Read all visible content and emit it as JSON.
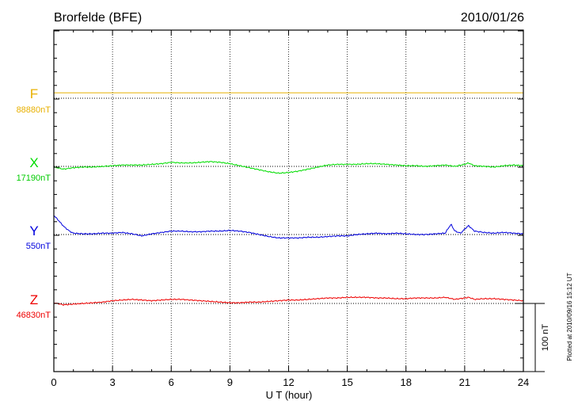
{
  "header": {
    "station": "Brorfelde (BFE)",
    "date": "2010/01/26"
  },
  "plotted_note": "Plotted at 2010/09/16 15:12 UT",
  "scale_bar": {
    "label": "100 nT",
    "value_nT": 100
  },
  "colors": {
    "F": "#e8b000",
    "X": "#00dd00",
    "Y": "#0000dd",
    "Z": "#ee0000",
    "axis": "#000000"
  },
  "chart_data": {
    "type": "line",
    "xlabel": "U T (hour)",
    "xlim": [
      0,
      24
    ],
    "x_ticks": [
      "0",
      "3",
      "6",
      "9",
      "12",
      "15",
      "18",
      "21",
      "24"
    ],
    "grid": "dotted",
    "series": [
      {
        "name": "F",
        "baseline_label": "88880nT",
        "baseline_nT": 88880,
        "x": [
          0,
          24
        ],
        "values": [
          8,
          8
        ]
      },
      {
        "name": "X",
        "baseline_label": "17190nT",
        "baseline_nT": 17190,
        "x": [
          0,
          0.5,
          1,
          1.5,
          2,
          2.5,
          3,
          3.5,
          4,
          4.5,
          5,
          5.5,
          6,
          6.5,
          7,
          7.5,
          8,
          8.5,
          9,
          9.5,
          10,
          10.5,
          11,
          11.5,
          12,
          12.5,
          13,
          13.5,
          14,
          14.5,
          15,
          15.5,
          16,
          16.5,
          17,
          17.5,
          18,
          18.5,
          19,
          19.5,
          20,
          20.5,
          21,
          21.2,
          21.5,
          22,
          22.5,
          23,
          23.5,
          24
        ],
        "values": [
          -1,
          -4,
          -2,
          -1,
          -1,
          0,
          1,
          2,
          2,
          2,
          3,
          4,
          6,
          5,
          5,
          6,
          7,
          6,
          4,
          1,
          -2,
          -5,
          -8,
          -10,
          -9,
          -7,
          -4,
          -1,
          2,
          3,
          3,
          3,
          4,
          4,
          3,
          2,
          1,
          1,
          0,
          1,
          2,
          0,
          3,
          5,
          1,
          0,
          -1,
          1,
          2,
          1
        ]
      },
      {
        "name": "Y",
        "baseline_label": "550nT",
        "baseline_nT": 550,
        "x": [
          0,
          0.2,
          0.5,
          0.8,
          1,
          1.5,
          2,
          2.5,
          3,
          3.5,
          4,
          4.5,
          5,
          5.5,
          6,
          6.5,
          7,
          7.5,
          8,
          8.5,
          9,
          9.5,
          10,
          10.5,
          11,
          11.5,
          12,
          12.5,
          13,
          13.5,
          14,
          14.5,
          15,
          15.5,
          16,
          16.5,
          17,
          17.5,
          18,
          18.5,
          19,
          19.5,
          20,
          20.3,
          20.5,
          20.8,
          21,
          21.2,
          21.5,
          22,
          22.5,
          23,
          23.5,
          24
        ],
        "values": [
          28,
          22,
          12,
          5,
          2,
          1,
          1,
          2,
          2,
          3,
          1,
          -2,
          1,
          3,
          5,
          5,
          4,
          4,
          5,
          5,
          6,
          5,
          3,
          0,
          -3,
          -5,
          -5,
          -5,
          -4,
          -4,
          -3,
          -2,
          -2,
          0,
          1,
          2,
          1,
          2,
          1,
          0,
          0,
          1,
          2,
          15,
          5,
          2,
          8,
          13,
          5,
          3,
          2,
          3,
          2,
          1
        ]
      },
      {
        "name": "Z",
        "baseline_label": "46830nT",
        "baseline_nT": 46830,
        "x": [
          0,
          0.5,
          1,
          1.5,
          2,
          2.5,
          3,
          3.5,
          4,
          4.5,
          5,
          5.5,
          6,
          6.5,
          7,
          7.5,
          8,
          8.5,
          9,
          9.5,
          10,
          10.5,
          11,
          11.5,
          12,
          12.5,
          13,
          13.5,
          14,
          14.5,
          15,
          15.5,
          16,
          16.5,
          17,
          17.5,
          18,
          18.5,
          19,
          19.5,
          20,
          20.5,
          21,
          21.2,
          21.5,
          22,
          22.5,
          23,
          23.5,
          24
        ],
        "values": [
          1,
          -2,
          -1,
          0,
          1,
          2,
          4,
          5,
          6,
          5,
          4,
          5,
          6,
          6,
          5,
          4,
          3,
          2,
          1,
          1,
          2,
          2,
          3,
          4,
          5,
          5,
          6,
          7,
          8,
          8,
          9,
          9,
          9,
          8,
          8,
          7,
          7,
          8,
          8,
          8,
          9,
          6,
          8,
          9,
          6,
          7,
          7,
          6,
          5,
          4
        ]
      }
    ]
  }
}
